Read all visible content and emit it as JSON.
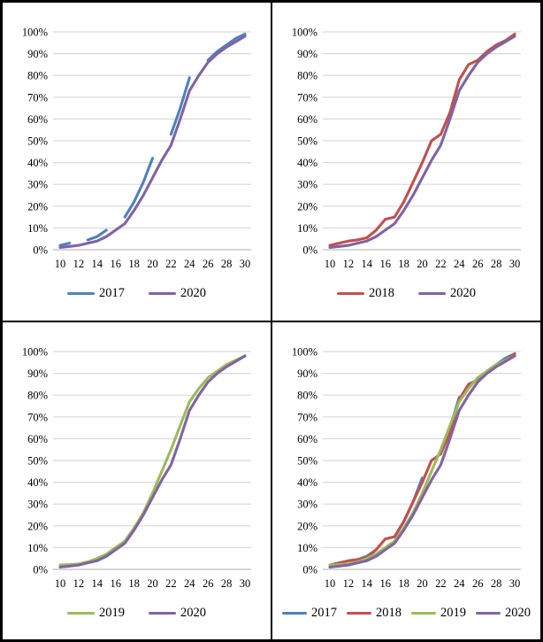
{
  "figure": {
    "description": "2x2 grid of cumulative percentage S-curve line charts comparing years 2017-2019 against 2020",
    "background_color": "#FFFFFF",
    "border_color": "#000000",
    "grid_color": "#D9D9D9",
    "axis_line_color": "#BFBFBF",
    "text_color": "#000000"
  },
  "series_colors": {
    "2017": "#4F81BD",
    "2018": "#C0504D",
    "2019": "#9BBB59",
    "2020": "#8064A2"
  },
  "chart_data": [
    {
      "panel": "top-left",
      "type": "line",
      "title": "",
      "xlabel": "",
      "ylabel": "",
      "x": [
        10,
        11,
        12,
        13,
        14,
        15,
        16,
        17,
        18,
        19,
        20,
        21,
        22,
        23,
        24,
        25,
        26,
        27,
        28,
        29,
        30
      ],
      "xtick_labels": [
        "10",
        "12",
        "14",
        "16",
        "18",
        "20",
        "22",
        "24",
        "26",
        "28",
        "30"
      ],
      "ytick_labels": [
        "0%",
        "10%",
        "20%",
        "30%",
        "40%",
        "50%",
        "60%",
        "70%",
        "80%",
        "90%",
        "100%"
      ],
      "ylim": [
        0,
        100
      ],
      "grid": true,
      "legend_position": "bottom",
      "series": [
        {
          "name": "2017",
          "color": "#4F81BD",
          "values": [
            2,
            3,
            null,
            4.5,
            6,
            9,
            null,
            15,
            22,
            31,
            42,
            null,
            53,
            65,
            79,
            null,
            87,
            91,
            94,
            97,
            99
          ]
        },
        {
          "name": "2020",
          "color": "#8064A2",
          "values": [
            1,
            1.5,
            2,
            3,
            4,
            6,
            9,
            12,
            18,
            25,
            33,
            41,
            48,
            60,
            73,
            80,
            86,
            90,
            93,
            95.5,
            98
          ]
        }
      ]
    },
    {
      "panel": "top-right",
      "type": "line",
      "title": "",
      "xlabel": "",
      "ylabel": "",
      "x": [
        10,
        11,
        12,
        13,
        14,
        15,
        16,
        17,
        18,
        19,
        20,
        21,
        22,
        23,
        24,
        25,
        26,
        27,
        28,
        29,
        30
      ],
      "xtick_labels": [
        "10",
        "12",
        "14",
        "16",
        "18",
        "20",
        "22",
        "24",
        "26",
        "28",
        "30"
      ],
      "ytick_labels": [
        "0%",
        "10%",
        "20%",
        "30%",
        "40%",
        "50%",
        "60%",
        "70%",
        "80%",
        "90%",
        "100%"
      ],
      "ylim": [
        0,
        100
      ],
      "grid": true,
      "legend_position": "bottom",
      "series": [
        {
          "name": "2018",
          "color": "#C0504D",
          "values": [
            2,
            3,
            4,
            4.5,
            5.5,
            9,
            14,
            15,
            22,
            31,
            40,
            50,
            53,
            63,
            78,
            85,
            87,
            91,
            94,
            96,
            99
          ]
        },
        {
          "name": "2020",
          "color": "#8064A2",
          "values": [
            1,
            1.5,
            2,
            3,
            4,
            6,
            9,
            12,
            18,
            25,
            33,
            41,
            48,
            60,
            73,
            80,
            86,
            90,
            93,
            95.5,
            98
          ]
        }
      ]
    },
    {
      "panel": "bottom-left",
      "type": "line",
      "title": "",
      "xlabel": "",
      "ylabel": "",
      "x": [
        10,
        11,
        12,
        13,
        14,
        15,
        16,
        17,
        18,
        19,
        20,
        21,
        22,
        23,
        24,
        25,
        26,
        27,
        28,
        29,
        30
      ],
      "xtick_labels": [
        "10",
        "12",
        "14",
        "16",
        "18",
        "20",
        "22",
        "24",
        "26",
        "28",
        "30"
      ],
      "ytick_labels": [
        "0%",
        "10%",
        "20%",
        "30%",
        "40%",
        "50%",
        "60%",
        "70%",
        "80%",
        "90%",
        "100%"
      ],
      "ylim": [
        0,
        100
      ],
      "grid": true,
      "legend_position": "bottom",
      "series": [
        {
          "name": "2019",
          "color": "#9BBB59",
          "values": [
            2,
            2.2,
            2.5,
            3.5,
            5,
            7,
            10,
            13,
            19,
            26,
            35,
            45,
            55,
            66,
            77,
            83,
            88,
            91,
            94,
            96,
            98
          ]
        },
        {
          "name": "2020",
          "color": "#8064A2",
          "values": [
            1,
            1.5,
            2,
            3,
            4,
            6,
            9,
            12,
            18,
            25,
            33,
            41,
            48,
            60,
            73,
            80,
            86,
            90,
            93,
            95.5,
            98
          ]
        }
      ]
    },
    {
      "panel": "bottom-right",
      "type": "line",
      "title": "",
      "xlabel": "",
      "ylabel": "",
      "x": [
        10,
        11,
        12,
        13,
        14,
        15,
        16,
        17,
        18,
        19,
        20,
        21,
        22,
        23,
        24,
        25,
        26,
        27,
        28,
        29,
        30
      ],
      "xtick_labels": [
        "10",
        "12",
        "14",
        "16",
        "18",
        "20",
        "22",
        "24",
        "26",
        "28",
        "30"
      ],
      "ytick_labels": [
        "0%",
        "10%",
        "20%",
        "30%",
        "40%",
        "50%",
        "60%",
        "70%",
        "80%",
        "90%",
        "100%"
      ],
      "ylim": [
        0,
        100
      ],
      "grid": true,
      "legend_position": "bottom",
      "series": [
        {
          "name": "2017",
          "color": "#4F81BD",
          "values": [
            2,
            3,
            null,
            4.5,
            6,
            9,
            null,
            15,
            22,
            31,
            42,
            null,
            53,
            65,
            79,
            null,
            87,
            91,
            94,
            97,
            99
          ]
        },
        {
          "name": "2018",
          "color": "#C0504D",
          "values": [
            2,
            3,
            4,
            4.5,
            5.5,
            9,
            14,
            15,
            22,
            31,
            40,
            50,
            53,
            63,
            78,
            85,
            87,
            91,
            94,
            96,
            99
          ]
        },
        {
          "name": "2019",
          "color": "#9BBB59",
          "values": [
            2,
            2.2,
            2.5,
            3.5,
            5,
            7,
            10,
            13,
            19,
            26,
            35,
            45,
            55,
            66,
            77,
            83,
            88,
            91,
            94,
            96,
            98
          ]
        },
        {
          "name": "2020",
          "color": "#8064A2",
          "values": [
            1,
            1.5,
            2,
            3,
            4,
            6,
            9,
            12,
            18,
            25,
            33,
            41,
            48,
            60,
            73,
            80,
            86,
            90,
            93,
            95.5,
            98
          ]
        }
      ]
    }
  ]
}
